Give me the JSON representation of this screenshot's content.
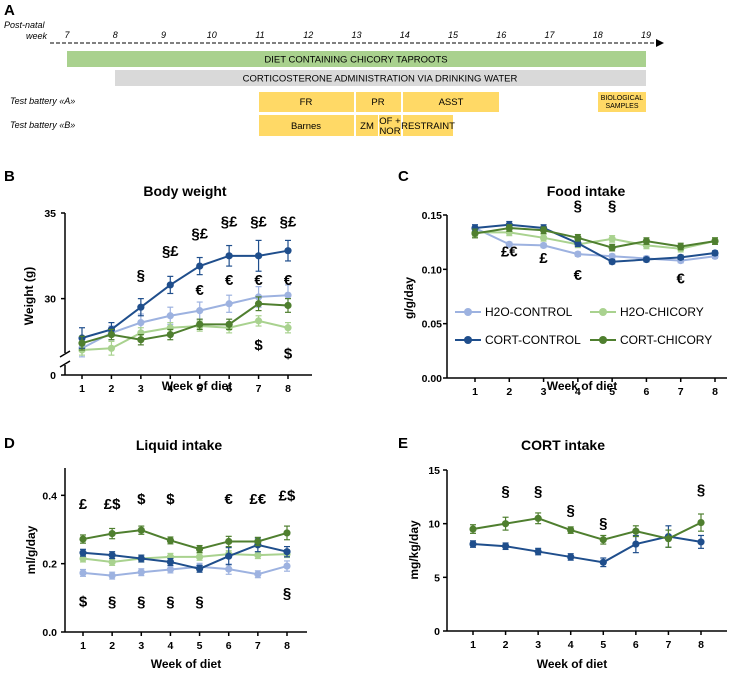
{
  "panels": {
    "A": "A",
    "B": "B",
    "C": "C",
    "D": "D",
    "E": "E"
  },
  "colors": {
    "h2o_control": "#9db2e0",
    "h2o_chicory": "#a9d28f",
    "cort_control": "#1f4e8c",
    "cort_chicory": "#4f7f2f",
    "diet_bar": "#a9d18e",
    "cort_bar": "#d9d9d9",
    "test_box": "#ffd966"
  },
  "timeline": {
    "axis_label_line1": "Post-natal",
    "axis_label_line2": "week",
    "weeks": [
      "7",
      "8",
      "9",
      "10",
      "11",
      "12",
      "13",
      "14",
      "15",
      "16",
      "17",
      "18",
      "19"
    ],
    "diet_bar": "DIET CONTAINING CHICORY TAPROOTS",
    "cort_bar": "CORTICOSTERONE ADMINISTRATION VIA DRINKING WATER",
    "battery_a_label": "Test battery «A»",
    "battery_b_label": "Test battery «B»",
    "battery_a": {
      "fr": "FR",
      "pr": "PR",
      "asst": "ASST",
      "bio_line1": "BIOLOGICAL",
      "bio_line2": "SAMPLES"
    },
    "battery_b": {
      "barnes": "Barnes",
      "zm": "ZM",
      "ofnor_line1": "OF +",
      "ofnor_line2": "NOR",
      "restraint": "RESTRAINT"
    }
  },
  "legend": {
    "h2o_control": "H2O-CONTROL",
    "h2o_chicory": "H2O-CHICORY",
    "cort_control": "CORT-CONTROL",
    "cort_chicory": "CORT-CHICORY"
  },
  "chart_data": [
    {
      "id": "body-weight",
      "type": "line",
      "title": "Body weight",
      "xlabel": "Week of diet",
      "ylabel": "Weight (g)",
      "x": [
        1,
        2,
        3,
        4,
        5,
        6,
        7,
        8
      ],
      "ylim": [
        0,
        35
      ],
      "y_axis_break": [
        0,
        26
      ],
      "y_ticks": [
        "0",
        "30",
        "35"
      ],
      "series": [
        {
          "name": "H2O-CONTROL",
          "values": [
            27.1,
            28.0,
            28.6,
            29.0,
            29.3,
            29.7,
            30.1,
            30.2
          ],
          "errors": [
            0.5,
            0.4,
            0.5,
            0.5,
            0.5,
            0.5,
            0.6,
            0.6
          ]
        },
        {
          "name": "H2O-CHICORY",
          "values": [
            27.0,
            27.1,
            28.0,
            28.3,
            28.4,
            28.3,
            28.7,
            28.3
          ],
          "errors": [
            0.3,
            0.4,
            0.3,
            0.3,
            0.3,
            0.3,
            0.3,
            0.3
          ]
        },
        {
          "name": "CORT-CONTROL",
          "values": [
            27.7,
            28.2,
            29.5,
            30.8,
            31.9,
            32.5,
            32.5,
            32.8
          ],
          "errors": [
            0.6,
            0.4,
            0.5,
            0.5,
            0.5,
            0.6,
            0.9,
            0.6
          ]
        },
        {
          "name": "CORT-CHICORY",
          "values": [
            27.4,
            27.9,
            27.6,
            27.9,
            28.5,
            28.5,
            29.7,
            29.6
          ],
          "errors": [
            0.4,
            0.3,
            0.3,
            0.3,
            0.3,
            0.3,
            0.4,
            0.4
          ]
        }
      ],
      "annotations": [
        {
          "x": 3,
          "y": 31.1,
          "text": "§"
        },
        {
          "x": 4,
          "y": 32.5,
          "text": "§£"
        },
        {
          "x": 5,
          "y": 33.5,
          "text": "§£"
        },
        {
          "x": 6,
          "y": 34.2,
          "text": "§£"
        },
        {
          "x": 7,
          "y": 34.2,
          "text": "§£"
        },
        {
          "x": 8,
          "y": 34.2,
          "text": "§£"
        },
        {
          "x": 5,
          "y": 30.2,
          "text": "€"
        },
        {
          "x": 6,
          "y": 30.8,
          "text": "€"
        },
        {
          "x": 7,
          "y": 30.8,
          "text": "€"
        },
        {
          "x": 8,
          "y": 30.8,
          "text": "€"
        },
        {
          "x": 7,
          "y": 27.0,
          "text": "$"
        },
        {
          "x": 8,
          "y": 26.5,
          "text": "$"
        }
      ]
    },
    {
      "id": "food-intake",
      "type": "line",
      "title": "Food intake",
      "xlabel": "Week of diet",
      "ylabel": "g/g/day",
      "x": [
        1,
        2,
        3,
        4,
        5,
        6,
        7,
        8
      ],
      "ylim": [
        0,
        0.15
      ],
      "y_ticks": [
        "0.00",
        "0.05",
        "0.10",
        "0.15"
      ],
      "series": [
        {
          "name": "H2O-CONTROL",
          "values": [
            0.138,
            0.123,
            0.122,
            0.114,
            0.112,
            0.11,
            0.108,
            0.112
          ],
          "errors": [
            0.003,
            0.002,
            0.002,
            0.002,
            0.002,
            0.002,
            0.002,
            0.002
          ]
        },
        {
          "name": "H2O-CHICORY",
          "values": [
            0.134,
            0.134,
            0.129,
            0.123,
            0.128,
            0.122,
            0.119,
            0.126
          ],
          "errors": [
            0.004,
            0.003,
            0.003,
            0.003,
            0.003,
            0.003,
            0.003,
            0.003
          ]
        },
        {
          "name": "CORT-CONTROL",
          "values": [
            0.138,
            0.141,
            0.138,
            0.124,
            0.107,
            0.109,
            0.111,
            0.115
          ],
          "errors": [
            0.003,
            0.003,
            0.003,
            0.003,
            0.002,
            0.002,
            0.002,
            0.002
          ]
        },
        {
          "name": "CORT-CHICORY",
          "values": [
            0.133,
            0.138,
            0.136,
            0.129,
            0.12,
            0.126,
            0.121,
            0.126
          ],
          "errors": [
            0.004,
            0.003,
            0.003,
            0.003,
            0.003,
            0.003,
            0.003,
            0.003
          ]
        }
      ],
      "annotations": [
        {
          "x": 4,
          "y": 0.154,
          "text": "§"
        },
        {
          "x": 5,
          "y": 0.154,
          "text": "§"
        },
        {
          "x": 2,
          "y": 0.112,
          "text": "£€"
        },
        {
          "x": 3,
          "y": 0.106,
          "text": "£"
        },
        {
          "x": 4,
          "y": 0.09,
          "text": "€"
        },
        {
          "x": 7,
          "y": 0.087,
          "text": "€"
        }
      ]
    },
    {
      "id": "liquid-intake",
      "type": "line",
      "title": "Liquid intake",
      "xlabel": "Week of diet",
      "ylabel": "ml/g/day",
      "x": [
        1,
        2,
        3,
        4,
        5,
        6,
        7,
        8
      ],
      "ylim": [
        0,
        0.48
      ],
      "y_ticks": [
        "0.0",
        "0.2",
        "0.4"
      ],
      "series": [
        {
          "name": "H2O-CONTROL",
          "values": [
            0.173,
            0.165,
            0.175,
            0.183,
            0.191,
            0.184,
            0.169,
            0.193
          ],
          "errors": [
            0.01,
            0.01,
            0.01,
            0.01,
            0.01,
            0.015,
            0.01,
            0.015
          ]
        },
        {
          "name": "H2O-CHICORY",
          "values": [
            0.215,
            0.205,
            0.215,
            0.22,
            0.22,
            0.228,
            0.225,
            0.228
          ],
          "errors": [
            0.01,
            0.01,
            0.01,
            0.01,
            0.01,
            0.01,
            0.01,
            0.01
          ]
        },
        {
          "name": "CORT-CONTROL",
          "values": [
            0.232,
            0.225,
            0.215,
            0.205,
            0.185,
            0.222,
            0.255,
            0.235
          ],
          "errors": [
            0.01,
            0.01,
            0.01,
            0.01,
            0.01,
            0.025,
            0.02,
            0.015
          ]
        },
        {
          "name": "CORT-CHICORY",
          "values": [
            0.272,
            0.288,
            0.298,
            0.268,
            0.243,
            0.265,
            0.265,
            0.29
          ],
          "errors": [
            0.012,
            0.015,
            0.012,
            0.01,
            0.01,
            0.015,
            0.012,
            0.02
          ]
        }
      ],
      "annotations": [
        {
          "x": 1,
          "y": 0.36,
          "text": "£"
        },
        {
          "x": 2,
          "y": 0.36,
          "text": "£$"
        },
        {
          "x": 3,
          "y": 0.375,
          "text": "$"
        },
        {
          "x": 4,
          "y": 0.375,
          "text": "$"
        },
        {
          "x": 6,
          "y": 0.375,
          "text": "€"
        },
        {
          "x": 7,
          "y": 0.375,
          "text": "£€"
        },
        {
          "x": 8,
          "y": 0.385,
          "text": "£$"
        },
        {
          "x": 1,
          "y": 0.075,
          "text": "$"
        },
        {
          "x": 2,
          "y": 0.075,
          "text": "§"
        },
        {
          "x": 3,
          "y": 0.075,
          "text": "§"
        },
        {
          "x": 4,
          "y": 0.075,
          "text": "§"
        },
        {
          "x": 5,
          "y": 0.075,
          "text": "§"
        },
        {
          "x": 8,
          "y": 0.1,
          "text": "§"
        }
      ]
    },
    {
      "id": "cort-intake",
      "type": "line",
      "title": "CORT intake",
      "xlabel": "Week of diet",
      "ylabel": "mg/kg/day",
      "x": [
        1,
        2,
        3,
        4,
        5,
        6,
        7,
        8
      ],
      "ylim": [
        0,
        15
      ],
      "y_ticks": [
        "0",
        "5",
        "10",
        "15"
      ],
      "series": [
        {
          "name": "CORT-CONTROL",
          "values": [
            8.1,
            7.9,
            7.4,
            6.9,
            6.4,
            8.1,
            8.8,
            8.3
          ],
          "errors": [
            0.3,
            0.3,
            0.3,
            0.3,
            0.4,
            0.8,
            1.0,
            0.6
          ]
        },
        {
          "name": "CORT-CHICORY",
          "values": [
            9.5,
            10.0,
            10.5,
            9.4,
            8.5,
            9.3,
            8.6,
            10.1
          ],
          "errors": [
            0.4,
            0.6,
            0.5,
            0.3,
            0.4,
            0.5,
            0.8,
            0.8
          ]
        }
      ],
      "annotations": [
        {
          "x": 2,
          "y": 12.6,
          "text": "§"
        },
        {
          "x": 3,
          "y": 12.6,
          "text": "§"
        },
        {
          "x": 4,
          "y": 10.8,
          "text": "§"
        },
        {
          "x": 5,
          "y": 9.6,
          "text": "§"
        },
        {
          "x": 8,
          "y": 12.7,
          "text": "§"
        }
      ]
    }
  ]
}
